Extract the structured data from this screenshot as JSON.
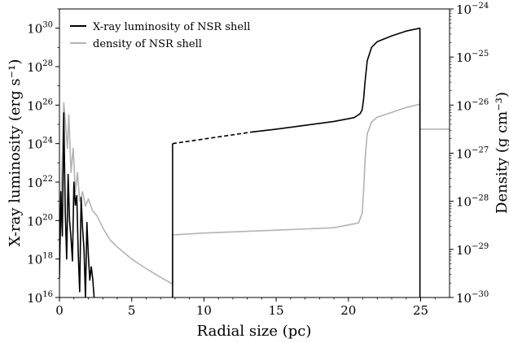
{
  "chart_data": {
    "type": "line",
    "xlabel": "Radial size (pc)",
    "ylabel_left": "X-ray luminosity (erg s⁻¹)",
    "ylabel_right": "Density (g cm⁻³)",
    "xlim": [
      0,
      27
    ],
    "ylim_left_log10": [
      16,
      31
    ],
    "ylim_right_log10": [
      -30,
      -24
    ],
    "yscale": "log",
    "x_ticks": [
      0,
      5,
      10,
      15,
      20,
      25
    ],
    "x_tick_labels": [
      "0",
      "5",
      "10",
      "15",
      "20",
      "25"
    ],
    "y_left_ticks": [
      16,
      18,
      20,
      22,
      24,
      26,
      28,
      30
    ],
    "y_left_tick_labels": [
      "10",
      "10",
      "10",
      "10",
      "10",
      "10",
      "10",
      "10"
    ],
    "y_left_tick_exponents": [
      "16",
      "18",
      "20",
      "22",
      "24",
      "26",
      "28",
      "30"
    ],
    "y_right_ticks": [
      -30,
      -29,
      -28,
      -27,
      -26,
      -25,
      -24
    ],
    "y_right_tick_labels": [
      "10",
      "10",
      "10",
      "10",
      "10",
      "10",
      "10"
    ],
    "y_right_tick_exponents": [
      "−30",
      "−29",
      "−28",
      "−27",
      "−26",
      "−25",
      "−24"
    ],
    "legend_position": "upper-left",
    "series": [
      {
        "name": "X-ray luminosity of NSR shell",
        "axis": "left",
        "color": "#000000",
        "segments": [
          {
            "style": "solid",
            "points": [
              [
                0.0,
                17.0
              ],
              [
                0.1,
                21.5
              ],
              [
                0.2,
                19.2
              ],
              [
                0.3,
                25.6
              ],
              [
                0.4,
                20.5
              ],
              [
                0.5,
                18.0
              ],
              [
                0.6,
                22.4
              ],
              [
                0.7,
                20.0
              ],
              [
                0.8,
                19.1
              ],
              [
                0.9,
                17.9
              ],
              [
                1.0,
                22.0
              ],
              [
                1.1,
                20.8
              ],
              [
                1.2,
                21.3
              ],
              [
                1.3,
                18.3
              ],
              [
                1.4,
                16.3
              ],
              [
                1.5,
                21.2
              ],
              [
                1.6,
                19.6
              ],
              [
                1.7,
                18.5
              ],
              [
                1.8,
                16.0
              ],
              [
                1.9,
                19.9
              ],
              [
                2.0,
                18.2
              ],
              [
                2.1,
                16.9
              ],
              [
                2.2,
                17.6
              ],
              [
                2.3,
                17.0
              ],
              [
                2.4,
                16.0
              ]
            ]
          },
          {
            "style": "solid",
            "points": [
              [
                7.83,
                16.0
              ],
              [
                7.83,
                24.0
              ]
            ]
          },
          {
            "style": "dashed",
            "points": [
              [
                7.83,
                24.0
              ],
              [
                13.3,
                24.6
              ]
            ]
          },
          {
            "style": "solid",
            "points": [
              [
                13.3,
                24.6
              ],
              [
                15,
                24.75
              ],
              [
                17,
                24.95
              ],
              [
                19,
                25.15
              ],
              [
                20.4,
                25.35
              ],
              [
                20.8,
                25.55
              ],
              [
                20.95,
                25.75
              ],
              [
                21.05,
                26.3
              ],
              [
                21.15,
                27.2
              ],
              [
                21.3,
                28.3
              ],
              [
                21.6,
                29.0
              ],
              [
                22,
                29.3
              ],
              [
                23,
                29.6
              ],
              [
                24,
                29.85
              ],
              [
                24.95,
                30.0
              ],
              [
                24.95,
                16.0
              ]
            ]
          }
        ]
      },
      {
        "name": "density of NSR shell",
        "axis": "right",
        "color": "#b3b3b3",
        "segments": [
          {
            "style": "solid",
            "points": [
              [
                0.05,
                -28.9
              ],
              [
                0.15,
                -27.6
              ],
              [
                0.3,
                -25.95
              ],
              [
                0.4,
                -26.3
              ],
              [
                0.55,
                -26.9
              ],
              [
                0.65,
                -26.2
              ],
              [
                0.8,
                -27.4
              ],
              [
                0.95,
                -26.9
              ],
              [
                1.1,
                -27.8
              ],
              [
                1.25,
                -27.4
              ],
              [
                1.4,
                -28.0
              ],
              [
                1.6,
                -27.8
              ],
              [
                1.8,
                -28.1
              ],
              [
                2.0,
                -27.95
              ],
              [
                2.3,
                -28.2
              ],
              [
                2.6,
                -28.3
              ],
              [
                3.0,
                -28.55
              ],
              [
                3.5,
                -28.8
              ],
              [
                4.0,
                -28.95
              ],
              [
                5.0,
                -29.2
              ],
              [
                6.0,
                -29.4
              ],
              [
                7.0,
                -29.58
              ],
              [
                7.83,
                -29.72
              ]
            ]
          },
          {
            "style": "solid",
            "points": [
              [
                7.83,
                -29.72
              ],
              [
                7.83,
                -28.7
              ],
              [
                10,
                -28.66
              ],
              [
                15,
                -28.6
              ],
              [
                19,
                -28.55
              ],
              [
                20.7,
                -28.45
              ],
              [
                20.95,
                -28.25
              ],
              [
                21.05,
                -27.8
              ],
              [
                21.15,
                -27.15
              ],
              [
                21.3,
                -26.6
              ],
              [
                21.6,
                -26.35
              ],
              [
                22,
                -26.25
              ],
              [
                23,
                -26.15
              ],
              [
                24,
                -26.05
              ],
              [
                24.95,
                -25.98
              ],
              [
                24.95,
                -26.5
              ],
              [
                27,
                -26.5
              ]
            ]
          }
        ]
      }
    ]
  }
}
